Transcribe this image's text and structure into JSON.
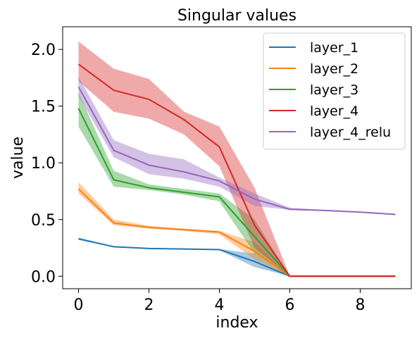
{
  "chart_data": {
    "type": "line",
    "title": "Singular values",
    "xlabel": "index",
    "ylabel": "value",
    "xlim": [
      -0.45,
      9.45
    ],
    "ylim": [
      -0.11,
      2.2
    ],
    "xticks": [
      0,
      2,
      4,
      6,
      8
    ],
    "xtick_labels": [
      "0",
      "2",
      "4",
      "6",
      "8"
    ],
    "yticks": [
      0.0,
      0.5,
      1.0,
      1.5,
      2.0
    ],
    "ytick_labels": [
      "0.0",
      "0.5",
      "1.0",
      "1.5",
      "2.0"
    ],
    "grid": false,
    "legend_position": "top-right",
    "series": [
      {
        "name": "layer_1",
        "color": "#1f77b4",
        "x": [
          0,
          1,
          2,
          3,
          4,
          5,
          6,
          7,
          8,
          9
        ],
        "values": [
          0.33,
          0.26,
          0.245,
          0.24,
          0.235,
          0.13,
          0.0,
          0.0,
          0.0,
          0.0
        ],
        "band_low": [
          0.32,
          0.255,
          0.24,
          0.235,
          0.23,
          0.08,
          0.0,
          0.0,
          0.0,
          0.0
        ],
        "band_high": [
          0.34,
          0.265,
          0.25,
          0.245,
          0.24,
          0.2,
          0.0,
          0.0,
          0.0,
          0.0
        ]
      },
      {
        "name": "layer_2",
        "color": "#ff7f0e",
        "x": [
          0,
          1,
          2,
          3,
          4,
          5,
          6,
          7,
          8,
          9
        ],
        "values": [
          0.77,
          0.47,
          0.43,
          0.41,
          0.39,
          0.22,
          0.0,
          0.0,
          0.0,
          0.0
        ],
        "band_low": [
          0.73,
          0.45,
          0.42,
          0.4,
          0.37,
          0.15,
          0.0,
          0.0,
          0.0,
          0.0
        ],
        "band_high": [
          0.83,
          0.5,
          0.445,
          0.42,
          0.4,
          0.3,
          0.0,
          0.0,
          0.0,
          0.0
        ]
      },
      {
        "name": "layer_3",
        "color": "#2ca02c",
        "x": [
          0,
          1,
          2,
          3,
          4,
          5,
          6,
          7,
          8,
          9
        ],
        "values": [
          1.48,
          0.85,
          0.78,
          0.74,
          0.7,
          0.35,
          0.0,
          0.0,
          0.0,
          0.0
        ],
        "band_low": [
          1.32,
          0.79,
          0.76,
          0.72,
          0.66,
          0.2,
          0.0,
          0.0,
          0.0,
          0.0
        ],
        "band_high": [
          1.62,
          0.93,
          0.81,
          0.77,
          0.73,
          0.5,
          0.0,
          0.0,
          0.0,
          0.0
        ]
      },
      {
        "name": "layer_4",
        "color": "#d62728",
        "x": [
          0,
          1,
          2,
          3,
          4,
          5,
          6,
          7,
          8,
          9
        ],
        "values": [
          1.87,
          1.64,
          1.56,
          1.38,
          1.14,
          0.45,
          0.0,
          0.0,
          0.0,
          0.0
        ],
        "band_low": [
          1.72,
          1.45,
          1.39,
          1.25,
          0.97,
          0.25,
          0.0,
          0.0,
          0.0,
          0.0
        ],
        "band_high": [
          2.07,
          1.83,
          1.74,
          1.45,
          1.32,
          0.78,
          0.0,
          0.0,
          0.0,
          0.0
        ]
      },
      {
        "name": "layer_4_relu",
        "color": "#9467bd",
        "x": [
          0,
          1,
          2,
          3,
          4,
          5,
          6,
          7,
          8,
          9
        ],
        "values": [
          1.67,
          1.11,
          0.98,
          0.92,
          0.84,
          0.68,
          0.59,
          0.58,
          0.565,
          0.545
        ],
        "band_low": [
          1.59,
          1.05,
          0.9,
          0.86,
          0.79,
          0.62,
          0.585,
          0.575,
          0.56,
          0.54
        ],
        "band_high": [
          1.76,
          1.2,
          1.08,
          1.03,
          0.87,
          0.73,
          0.605,
          0.585,
          0.57,
          0.55
        ]
      }
    ]
  }
}
